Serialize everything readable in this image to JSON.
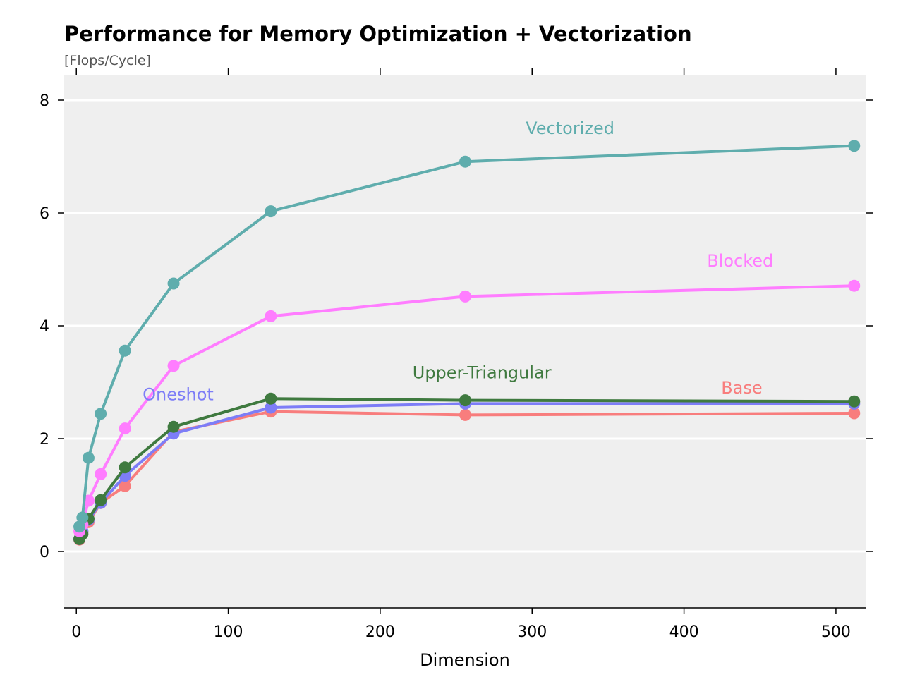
{
  "chart_data": {
    "type": "line",
    "title": "Performance for Memory Optimization + Vectorization",
    "subtitle": "[Flops/Cycle]",
    "xlabel": "Dimension",
    "ylabel": "",
    "xlim": [
      -8,
      520
    ],
    "ylim": [
      -1.0,
      8.45
    ],
    "xticks": [
      0,
      100,
      200,
      300,
      400,
      500
    ],
    "yticks": [
      0,
      2,
      4,
      6,
      8
    ],
    "grid": "horizontal",
    "legend": "inline labels",
    "colors": {
      "plot_background": "#efefef",
      "grid": "#ffffff"
    },
    "series": [
      {
        "name": "Base",
        "color": "#f87d7d",
        "label_at": [
          438,
          2.8
        ],
        "x": [
          2,
          4,
          8,
          16,
          32,
          64,
          128,
          256,
          512
        ],
        "y": [
          0.21,
          0.35,
          0.52,
          0.86,
          1.16,
          2.12,
          2.48,
          2.42,
          2.45
        ]
      },
      {
        "name": "Oneshot",
        "color": "#7d7df7",
        "label_at": [
          67,
          2.68
        ],
        "x": [
          2,
          4,
          8,
          16,
          32,
          64,
          128,
          256,
          512
        ],
        "y": [
          0.22,
          0.36,
          0.56,
          0.86,
          1.34,
          2.09,
          2.55,
          2.62,
          2.62
        ]
      },
      {
        "name": "Upper-Triangular",
        "color": "#3f7a3f",
        "label_at": [
          267,
          3.07
        ],
        "x": [
          2,
          4,
          8,
          16,
          32,
          64,
          128,
          256,
          512
        ],
        "y": [
          0.22,
          0.31,
          0.58,
          0.91,
          1.49,
          2.21,
          2.71,
          2.68,
          2.66
        ]
      },
      {
        "name": "Blocked",
        "color": "#ff7dff",
        "label_at": [
          437,
          5.05
        ],
        "x": [
          2,
          4,
          8,
          16,
          32,
          64,
          128,
          256,
          512
        ],
        "y": [
          0.36,
          0.48,
          0.9,
          1.37,
          2.18,
          3.29,
          4.17,
          4.52,
          4.71
        ]
      },
      {
        "name": "Vectorized",
        "color": "#5fadad",
        "label_at": [
          325,
          7.4
        ],
        "x": [
          2,
          4,
          8,
          16,
          32,
          64,
          128,
          256,
          512
        ],
        "y": [
          0.44,
          0.6,
          1.66,
          2.44,
          3.56,
          4.75,
          6.03,
          6.91,
          7.19
        ]
      }
    ]
  }
}
